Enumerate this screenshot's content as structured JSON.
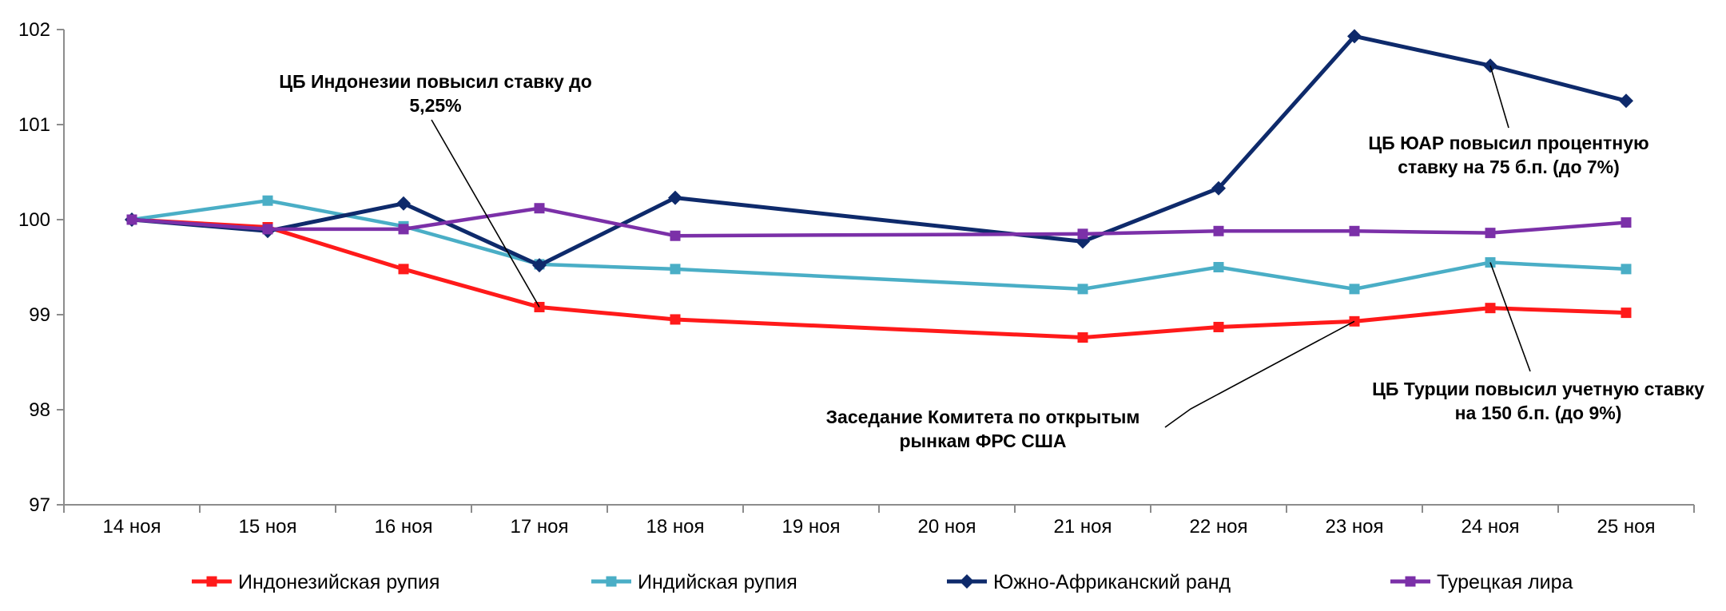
{
  "chart_data": {
    "type": "line",
    "title": "",
    "xlabel": "",
    "ylabel": "",
    "categories": [
      "14 ноя",
      "15 ноя",
      "16 ноя",
      "17 ноя",
      "18 ноя",
      "19 ноя",
      "20 ноя",
      "21 ноя",
      "22 ноя",
      "23 ноя",
      "24 ноя",
      "25 ноя"
    ],
    "ylim": [
      97,
      102
    ],
    "yticks": [
      "97",
      "98",
      "99",
      "100",
      "101",
      "102"
    ],
    "grid": false,
    "legend_position": "bottom",
    "series": [
      {
        "name": "Индонезийская рупия",
        "color": "#ff1a1a",
        "marker": "square",
        "values": [
          100.0,
          99.92,
          99.48,
          99.08,
          98.95,
          null,
          null,
          98.76,
          98.87,
          98.93,
          99.07,
          99.02
        ]
      },
      {
        "name": "Индийская рупия",
        "color": "#4aaec6",
        "marker": "square",
        "values": [
          100.0,
          100.2,
          99.93,
          99.53,
          99.48,
          null,
          null,
          99.27,
          99.5,
          99.27,
          99.55,
          99.48
        ]
      },
      {
        "name": "Южно-Африканский ранд",
        "color": "#0e2a6b",
        "marker": "diamond",
        "values": [
          100.0,
          99.88,
          100.17,
          99.52,
          100.23,
          null,
          null,
          99.77,
          100.33,
          101.93,
          101.62,
          101.25
        ]
      },
      {
        "name": "Турецкая лира",
        "color": "#7b30a8",
        "marker": "square",
        "values": [
          100.0,
          99.9,
          99.9,
          100.12,
          99.83,
          null,
          null,
          99.85,
          99.88,
          99.88,
          99.86,
          99.97
        ]
      }
    ],
    "annotations": [
      {
        "lines": [
          "ЦБ Индонезии повысил ставку до",
          "5,25%"
        ],
        "target": {
          "series": 0,
          "index": 3
        }
      },
      {
        "lines": [
          "ЦБ ЮАР повысил процентную",
          "ставку  на 75 б.п. (до 7%)"
        ],
        "target": {
          "series": 2,
          "index": 10
        }
      },
      {
        "lines": [
          "ЦБ Турции повысил учетную ставку",
          "на 150 б.п. (до 9%)"
        ],
        "target": {
          "series": 1,
          "index": 10
        }
      },
      {
        "lines": [
          "Заседание Комитета по открытым",
          "рынкам ФРС США"
        ],
        "target": {
          "series": 0,
          "index": 9
        }
      }
    ]
  }
}
